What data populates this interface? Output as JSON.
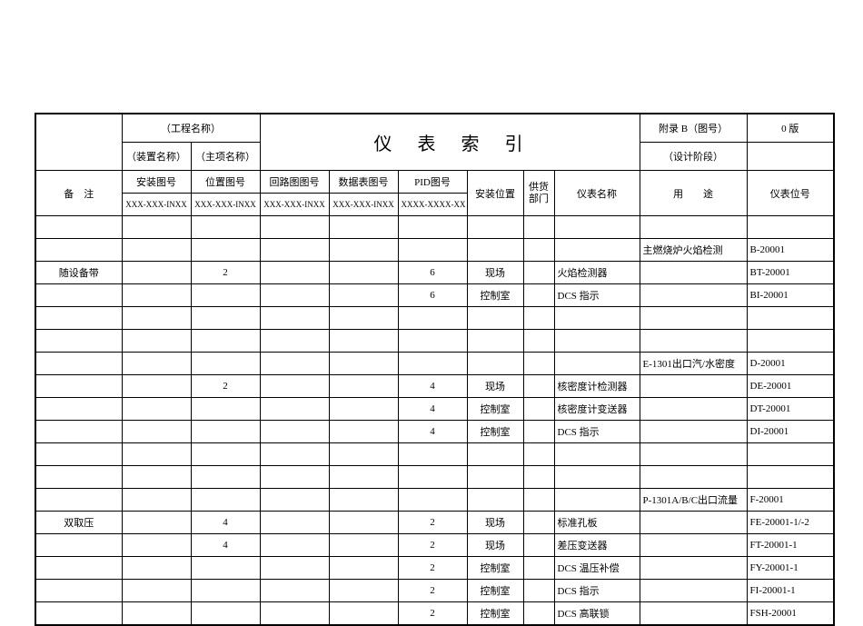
{
  "header": {
    "project_name": "（工程名称）",
    "device_name": "（装置名称）",
    "subitem_name": "（主项名称）",
    "title": "仪表索引",
    "appendix": "附录 B（图号）",
    "version": "0 版",
    "design_stage": "（设计阶段）"
  },
  "columns": {
    "remark": "备　注",
    "install_drawing": "安装图号",
    "position_drawing": "位置图号",
    "loop_drawing": "回路图图号",
    "data_sheet": "数据表图号",
    "pid": "PID图号",
    "install_location": "安装位置",
    "supplier": "供货部门",
    "instrument_name": "仪表名称",
    "usage": "用　　途",
    "tag": "仪表位号"
  },
  "subheaders": {
    "install_drawing": "XXX-XXX-INXX",
    "position_drawing": "XXX-XXX-INXX",
    "loop_drawing": "XXX-XXX-INXX",
    "data_sheet": "XXX-XXX-INXX",
    "pid": "XXXX-XXXX-XX"
  },
  "rows": [
    {
      "remark": "",
      "install": "",
      "position": "",
      "loop": "",
      "data": "",
      "pid": "",
      "location": "",
      "supplier": "",
      "name": "",
      "usage": "",
      "tag": ""
    },
    {
      "remark": "",
      "install": "",
      "position": "",
      "loop": "",
      "data": "",
      "pid": "",
      "location": "",
      "supplier": "",
      "name": "",
      "usage": "主燃烧炉火焰检测",
      "tag": "B-20001"
    },
    {
      "remark": "随设备带",
      "install": "",
      "position": "2",
      "loop": "",
      "data": "",
      "pid": "6",
      "location": "现场",
      "supplier": "",
      "name": "火焰检测器",
      "usage": "",
      "tag": "BT-20001"
    },
    {
      "remark": "",
      "install": "",
      "position": "",
      "loop": "",
      "data": "",
      "pid": "6",
      "location": "控制室",
      "supplier": "",
      "name": "DCS 指示",
      "usage": "",
      "tag": "BI-20001"
    },
    {
      "remark": "",
      "install": "",
      "position": "",
      "loop": "",
      "data": "",
      "pid": "",
      "location": "",
      "supplier": "",
      "name": "",
      "usage": "",
      "tag": ""
    },
    {
      "remark": "",
      "install": "",
      "position": "",
      "loop": "",
      "data": "",
      "pid": "",
      "location": "",
      "supplier": "",
      "name": "",
      "usage": "",
      "tag": ""
    },
    {
      "remark": "",
      "install": "",
      "position": "",
      "loop": "",
      "data": "",
      "pid": "",
      "location": "",
      "supplier": "",
      "name": "",
      "usage": "E-1301出口汽/水密度",
      "tag": "D-20001"
    },
    {
      "remark": "",
      "install": "",
      "position": "2",
      "loop": "",
      "data": "",
      "pid": "4",
      "location": "现场",
      "supplier": "",
      "name": "核密度计检测器",
      "usage": "",
      "tag": "DE-20001"
    },
    {
      "remark": "",
      "install": "",
      "position": "",
      "loop": "",
      "data": "",
      "pid": "4",
      "location": "控制室",
      "supplier": "",
      "name": "核密度计变送器",
      "usage": "",
      "tag": "DT-20001"
    },
    {
      "remark": "",
      "install": "",
      "position": "",
      "loop": "",
      "data": "",
      "pid": "4",
      "location": "控制室",
      "supplier": "",
      "name": "DCS 指示",
      "usage": "",
      "tag": "DI-20001"
    },
    {
      "remark": "",
      "install": "",
      "position": "",
      "loop": "",
      "data": "",
      "pid": "",
      "location": "",
      "supplier": "",
      "name": "",
      "usage": "",
      "tag": ""
    },
    {
      "remark": "",
      "install": "",
      "position": "",
      "loop": "",
      "data": "",
      "pid": "",
      "location": "",
      "supplier": "",
      "name": "",
      "usage": "",
      "tag": ""
    },
    {
      "remark": "",
      "install": "",
      "position": "",
      "loop": "",
      "data": "",
      "pid": "",
      "location": "",
      "supplier": "",
      "name": "",
      "usage": "P-1301A/B/C出口流量",
      "tag": "F-20001"
    },
    {
      "remark": "双取压",
      "install": "",
      "position": "4",
      "loop": "",
      "data": "",
      "pid": "2",
      "location": "现场",
      "supplier": "",
      "name": "标准孔板",
      "usage": "",
      "tag": "FE-20001-1/-2"
    },
    {
      "remark": "",
      "install": "",
      "position": "4",
      "loop": "",
      "data": "",
      "pid": "2",
      "location": "现场",
      "supplier": "",
      "name": "差压变送器",
      "usage": "",
      "tag": "FT-20001-1"
    },
    {
      "remark": "",
      "install": "",
      "position": "",
      "loop": "",
      "data": "",
      "pid": "2",
      "location": "控制室",
      "supplier": "",
      "name": "DCS 温压补偿",
      "usage": "",
      "tag": "FY-20001-1"
    },
    {
      "remark": "",
      "install": "",
      "position": "",
      "loop": "",
      "data": "",
      "pid": "2",
      "location": "控制室",
      "supplier": "",
      "name": "DCS 指示",
      "usage": "",
      "tag": "FI-20001-1"
    },
    {
      "remark": "",
      "install": "",
      "position": "",
      "loop": "",
      "data": "",
      "pid": "2",
      "location": "控制室",
      "supplier": "",
      "name": "DCS 高联锁",
      "usage": "",
      "tag": "FSH-20001"
    }
  ]
}
